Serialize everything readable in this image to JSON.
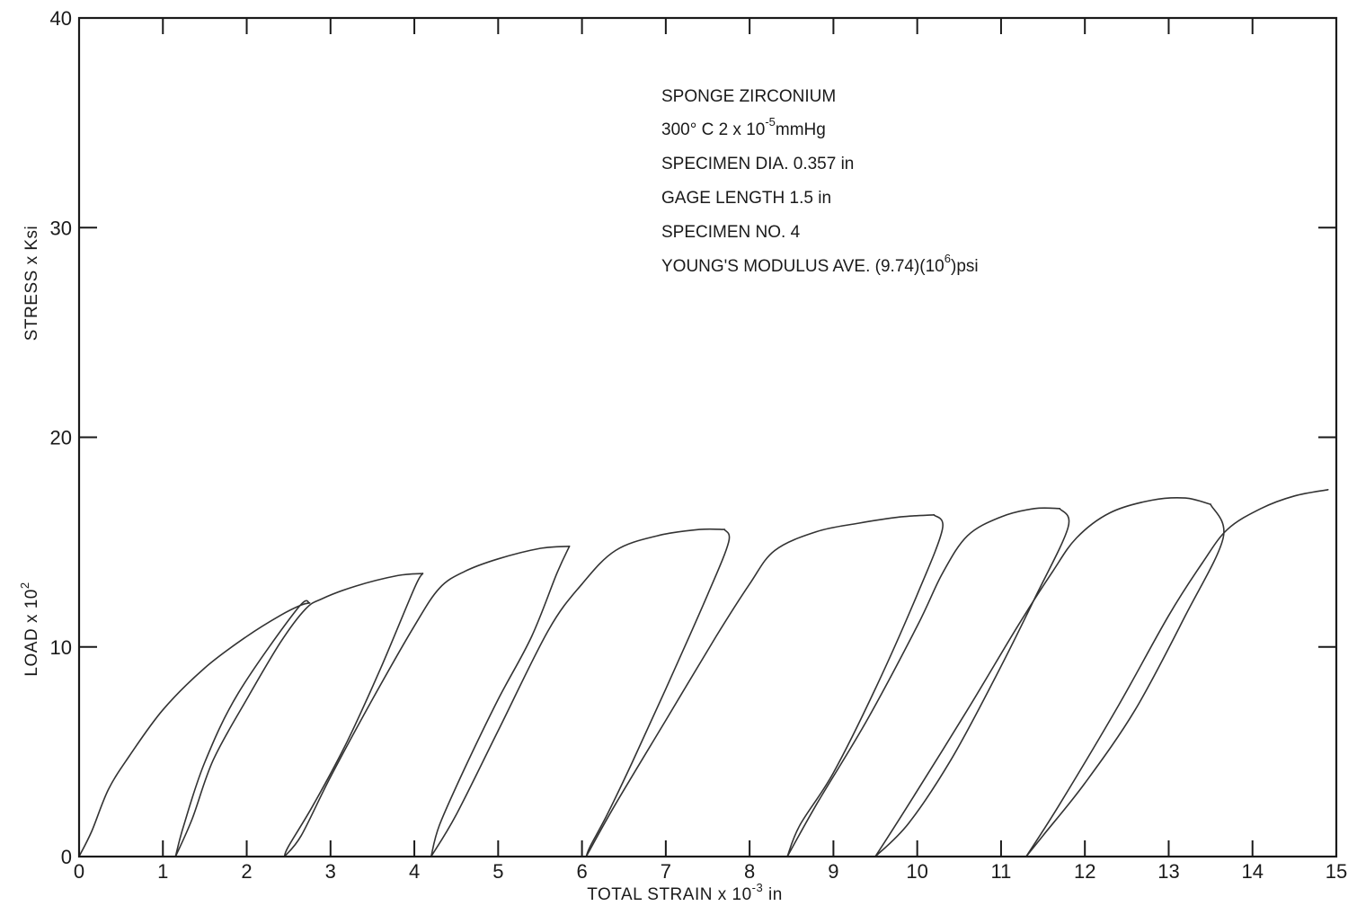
{
  "chart_data": {
    "type": "line",
    "xlabel": {
      "main": "TOTAL  STRAIN  x  10",
      "sup": "-3",
      "suffix": " in"
    },
    "ylabel": "STRESS x Ksi",
    "ylabel_secondary": {
      "main": "LOAD x 10",
      "sup": "2"
    },
    "xlim": [
      0,
      15
    ],
    "ylim": [
      0,
      40
    ],
    "x_ticks": [
      0,
      1,
      2,
      3,
      4,
      5,
      6,
      7,
      8,
      9,
      10,
      11,
      12,
      13,
      14,
      15
    ],
    "x_tick_labels": [
      "0",
      "1",
      "2",
      "3",
      "4",
      "5",
      "6",
      "7",
      "8",
      "9",
      "10",
      "11",
      "12",
      "13",
      "14",
      "15"
    ],
    "y_ticks": [
      0,
      10,
      20,
      30,
      40
    ],
    "y_tick_labels": [
      "0",
      "10",
      "20",
      "30",
      "40"
    ],
    "grid": false,
    "annotations": [
      {
        "text": "SPONGE  ZIRCONIUM"
      },
      {
        "text": "300° C  2 x 10",
        "sup": "-5",
        "suffix": "mmHg"
      },
      {
        "text": "SPECIMEN  DIA. 0.357 in"
      },
      {
        "text": "GAGE  LENGTH  1.5 in"
      },
      {
        "text": "SPECIMEN  NO. 4"
      },
      {
        "text": "YOUNG'S  MODULUS  AVE. (9.74)(10",
        "sup": "6",
        "suffix": ")psi"
      }
    ],
    "series": [
      {
        "segment": "loading-1",
        "points": [
          [
            0,
            0
          ],
          [
            0.15,
            1.2
          ],
          [
            0.35,
            3.2
          ],
          [
            0.6,
            4.8
          ],
          [
            1.0,
            7.0
          ],
          [
            1.5,
            9.0
          ],
          [
            2.0,
            10.5
          ],
          [
            2.4,
            11.5
          ],
          [
            2.65,
            12.0
          ],
          [
            2.75,
            12.1
          ]
        ]
      },
      {
        "segment": "unload-1",
        "points": [
          [
            2.75,
            12.1
          ],
          [
            2.6,
            11.8
          ],
          [
            1.9,
            7.8
          ],
          [
            1.5,
            4.5
          ],
          [
            1.25,
            1.5
          ],
          [
            1.15,
            0
          ]
        ]
      },
      {
        "segment": "reload-1",
        "points": [
          [
            1.15,
            0
          ],
          [
            1.35,
            1.8
          ],
          [
            1.6,
            4.6
          ],
          [
            2.0,
            7.5
          ],
          [
            2.4,
            10.2
          ],
          [
            2.7,
            11.8
          ],
          [
            2.9,
            12.3
          ],
          [
            3.3,
            12.9
          ],
          [
            3.8,
            13.4
          ],
          [
            4.1,
            13.5
          ]
        ]
      },
      {
        "segment": "unload-2",
        "points": [
          [
            4.1,
            13.5
          ],
          [
            4.0,
            12.8
          ],
          [
            3.6,
            9.0
          ],
          [
            3.2,
            5.5
          ],
          [
            2.8,
            2.5
          ],
          [
            2.5,
            0.5
          ],
          [
            2.45,
            0
          ]
        ]
      },
      {
        "segment": "reload-2",
        "points": [
          [
            2.45,
            0
          ],
          [
            2.65,
            1.0
          ],
          [
            3.0,
            3.8
          ],
          [
            3.5,
            7.5
          ],
          [
            4.0,
            11.0
          ],
          [
            4.3,
            12.8
          ],
          [
            4.6,
            13.6
          ],
          [
            5.0,
            14.2
          ],
          [
            5.5,
            14.7
          ],
          [
            5.85,
            14.8
          ]
        ]
      },
      {
        "segment": "unload-3",
        "points": [
          [
            5.85,
            14.8
          ],
          [
            5.7,
            13.5
          ],
          [
            5.4,
            10.5
          ],
          [
            5.0,
            7.5
          ],
          [
            4.6,
            4.2
          ],
          [
            4.3,
            1.5
          ],
          [
            4.2,
            0
          ]
        ]
      },
      {
        "segment": "reload-3",
        "points": [
          [
            4.2,
            0
          ],
          [
            4.5,
            2.0
          ],
          [
            5.0,
            6.0
          ],
          [
            5.6,
            10.8
          ],
          [
            6.0,
            13.0
          ],
          [
            6.4,
            14.6
          ],
          [
            6.9,
            15.3
          ],
          [
            7.4,
            15.6
          ],
          [
            7.7,
            15.6
          ]
        ]
      },
      {
        "segment": "unload-4",
        "points": [
          [
            7.7,
            15.6
          ],
          [
            7.75,
            15.0
          ],
          [
            7.5,
            12.5
          ],
          [
            7.0,
            8.0
          ],
          [
            6.6,
            4.5
          ],
          [
            6.3,
            2.0
          ],
          [
            6.1,
            0.5
          ],
          [
            6.05,
            0
          ]
        ]
      },
      {
        "segment": "reload-4",
        "points": [
          [
            6.05,
            0
          ],
          [
            6.4,
            2.5
          ],
          [
            7.0,
            6.5
          ],
          [
            7.6,
            10.5
          ],
          [
            8.0,
            13.0
          ],
          [
            8.3,
            14.6
          ],
          [
            8.8,
            15.5
          ],
          [
            9.3,
            15.9
          ],
          [
            9.8,
            16.2
          ],
          [
            10.2,
            16.3
          ]
        ]
      },
      {
        "segment": "unload-5",
        "points": [
          [
            10.2,
            16.3
          ],
          [
            10.3,
            15.6
          ],
          [
            10.0,
            12.5
          ],
          [
            9.5,
            8.0
          ],
          [
            9.0,
            4.0
          ],
          [
            8.6,
            1.5
          ],
          [
            8.45,
            0
          ]
        ]
      },
      {
        "segment": "reload-5",
        "points": [
          [
            8.45,
            0
          ],
          [
            8.8,
            2.5
          ],
          [
            9.4,
            6.5
          ],
          [
            10.0,
            11.0
          ],
          [
            10.3,
            13.5
          ],
          [
            10.6,
            15.3
          ],
          [
            11.0,
            16.2
          ],
          [
            11.4,
            16.6
          ],
          [
            11.7,
            16.6
          ]
        ]
      },
      {
        "segment": "unload-6",
        "points": [
          [
            11.7,
            16.6
          ],
          [
            11.8,
            15.7
          ],
          [
            11.4,
            12.3
          ],
          [
            10.9,
            8.3
          ],
          [
            10.4,
            4.6
          ],
          [
            9.9,
            1.6
          ],
          [
            9.5,
            0
          ]
        ]
      },
      {
        "segment": "reload-6",
        "points": [
          [
            9.5,
            0
          ],
          [
            9.9,
            2.5
          ],
          [
            10.6,
            7.0
          ],
          [
            11.2,
            11.0
          ],
          [
            11.6,
            13.5
          ],
          [
            11.9,
            15.2
          ],
          [
            12.3,
            16.4
          ],
          [
            12.8,
            17.0
          ],
          [
            13.2,
            17.1
          ],
          [
            13.5,
            16.8
          ]
        ]
      },
      {
        "segment": "unload-7",
        "points": [
          [
            13.5,
            16.8
          ],
          [
            13.65,
            15.2
          ],
          [
            13.2,
            11.5
          ],
          [
            12.6,
            7.0
          ],
          [
            12.0,
            3.5
          ],
          [
            11.5,
            1.0
          ],
          [
            11.3,
            0
          ]
        ]
      },
      {
        "segment": "reload-7",
        "points": [
          [
            11.3,
            0
          ],
          [
            11.7,
            2.5
          ],
          [
            12.4,
            7.2
          ],
          [
            13.0,
            11.5
          ],
          [
            13.4,
            14.0
          ],
          [
            13.7,
            15.6
          ],
          [
            14.1,
            16.6
          ],
          [
            14.5,
            17.2
          ],
          [
            14.9,
            17.5
          ]
        ]
      }
    ]
  }
}
